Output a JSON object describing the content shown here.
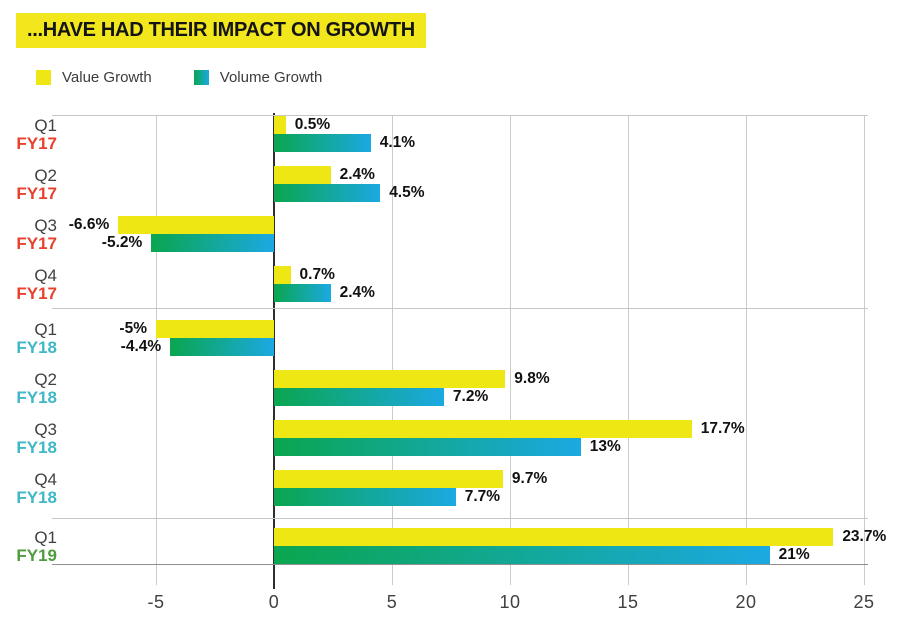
{
  "chart_data": {
    "type": "bar",
    "orientation": "horizontal",
    "title": "...HAVE HAD THEIR IMPACT ON GROWTH",
    "title_bg": "#f2e71c",
    "legend": [
      {
        "name": "Value Growth",
        "color": "#eee714"
      },
      {
        "name": "Volume Growth",
        "gradient": [
          "#0aa64f",
          "#1ba9e2"
        ]
      }
    ],
    "x_ticks": [
      "-5",
      "0",
      "5",
      "10",
      "15",
      "20",
      "25"
    ],
    "x_tick_values": [
      -5,
      0,
      5,
      10,
      15,
      20,
      25
    ],
    "xlim": [
      -9.3,
      25.3
    ],
    "grid": true,
    "legend_position": "top-left",
    "fy_colors": {
      "FY17": "#e8402c",
      "FY18": "#3eb7c7",
      "FY19": "#4f9c3c"
    },
    "groups": [
      {
        "quarter": "Q1",
        "fy": "FY17",
        "value": 0.5,
        "value_label": "0.5%",
        "volume": 4.1,
        "volume_label": "4.1%"
      },
      {
        "quarter": "Q2",
        "fy": "FY17",
        "value": 2.4,
        "value_label": "2.4%",
        "volume": 4.5,
        "volume_label": "4.5%"
      },
      {
        "quarter": "Q3",
        "fy": "FY17",
        "value": -6.6,
        "value_label": "-6.6%",
        "volume": -5.2,
        "volume_label": "-5.2%"
      },
      {
        "quarter": "Q4",
        "fy": "FY17",
        "value": 0.7,
        "value_label": "0.7%",
        "volume": 2.4,
        "volume_label": "2.4%"
      },
      {
        "quarter": "Q1",
        "fy": "FY18",
        "value": -5,
        "value_label": "-5%",
        "volume": -4.4,
        "volume_label": "-4.4%"
      },
      {
        "quarter": "Q2",
        "fy": "FY18",
        "value": 9.8,
        "value_label": "9.8%",
        "volume": 7.2,
        "volume_label": "7.2%"
      },
      {
        "quarter": "Q3",
        "fy": "FY18",
        "value": 17.7,
        "value_label": "17.7%",
        "volume": 13,
        "volume_label": "13%"
      },
      {
        "quarter": "Q4",
        "fy": "FY18",
        "value": 9.7,
        "value_label": "9.7%",
        "volume": 7.7,
        "volume_label": "7.7%"
      },
      {
        "quarter": "Q1",
        "fy": "FY19",
        "value": 23.7,
        "value_label": "23.7%",
        "volume": 21,
        "volume_label": "21%"
      }
    ]
  }
}
